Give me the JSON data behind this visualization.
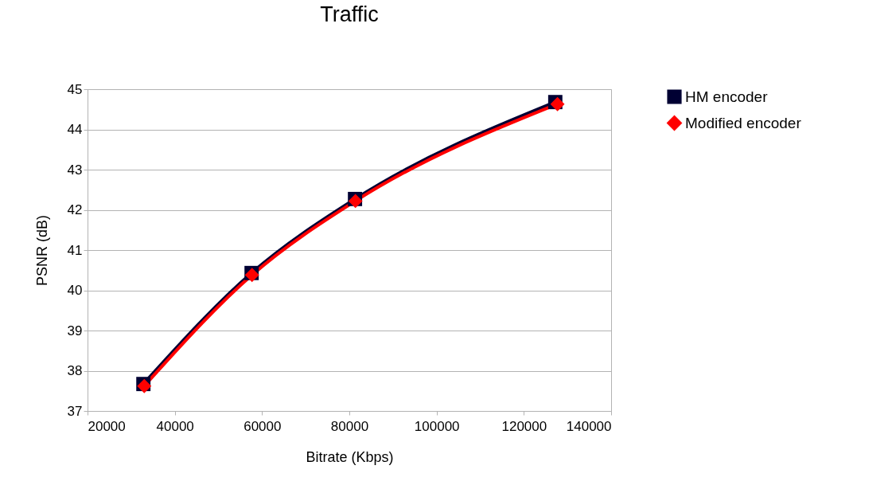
{
  "chart_data": {
    "type": "line",
    "title": "Traffic",
    "xlabel": "Bitrate (Kbps)",
    "ylabel": "PSNR (dB)",
    "xlim": [
      20000,
      140000
    ],
    "xticks": [
      20000,
      40000,
      60000,
      80000,
      100000,
      120000,
      140000
    ],
    "ylim": [
      37,
      45
    ],
    "yticks": [
      37,
      38,
      39,
      40,
      41,
      42,
      43,
      44,
      45
    ],
    "grid": "y",
    "legend": "right",
    "series": [
      {
        "name": "HM encoder",
        "color": "#000033",
        "marker": "square",
        "x": [
          32800,
          57600,
          81300,
          127200
        ],
        "values": [
          37.67,
          40.43,
          42.27,
          44.68
        ]
      },
      {
        "name": "Modified encoder",
        "color": "#ff0000",
        "marker": "diamond",
        "x": [
          33000,
          57700,
          81400,
          127700
        ],
        "values": [
          37.62,
          40.38,
          42.22,
          44.63
        ]
      }
    ]
  }
}
